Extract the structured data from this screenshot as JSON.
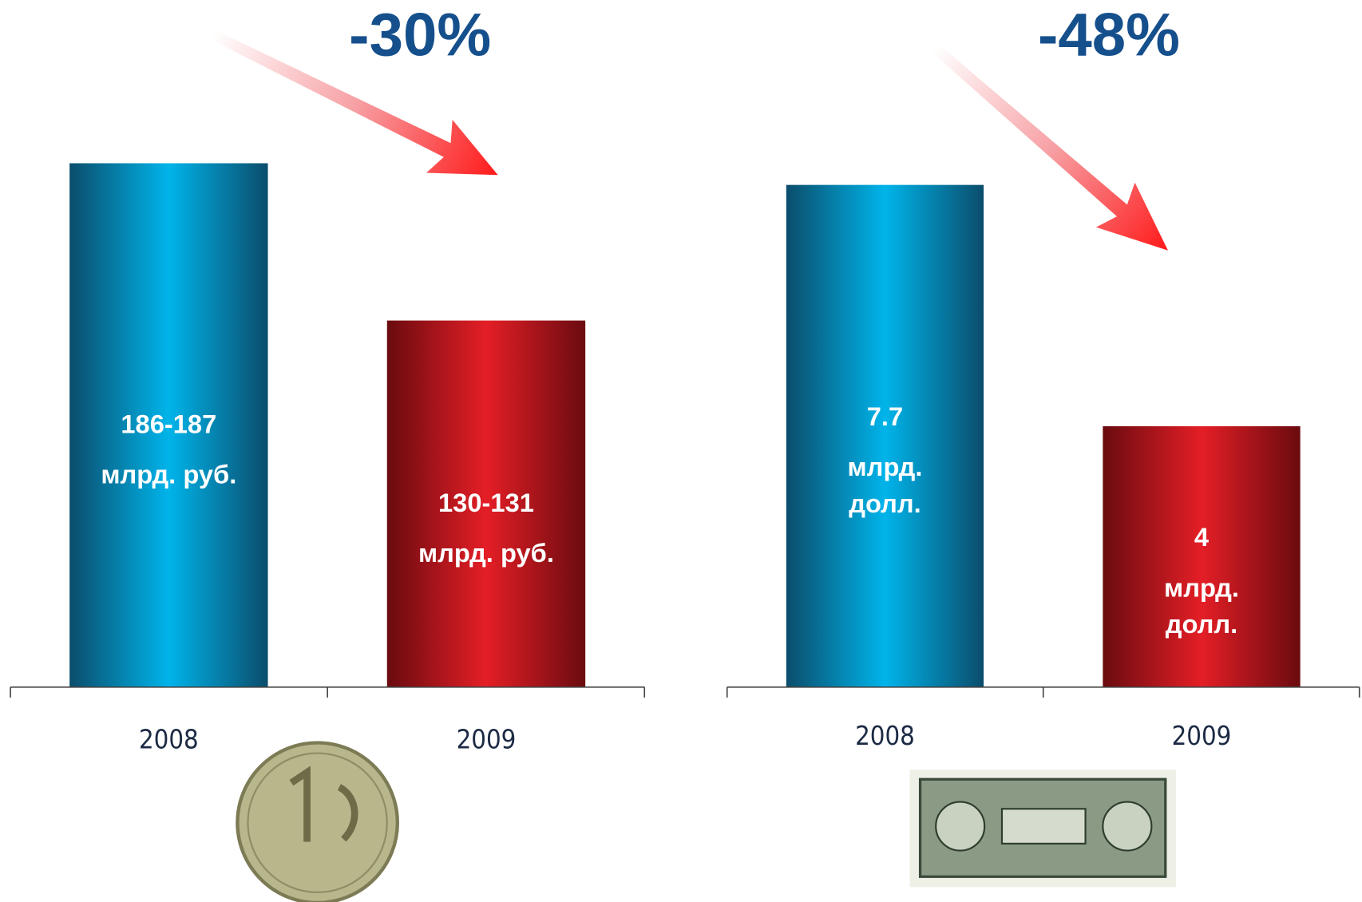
{
  "chart_data": [
    {
      "type": "bar",
      "annotation": "-30%",
      "categories": [
        "2008",
        "2009"
      ],
      "values": [
        186.5,
        130.5
      ],
      "value_labels": [
        "186-187",
        "130-131"
      ],
      "unit_lines": [
        "млрд. руб."
      ],
      "colors": [
        "#00b4ea",
        "#e41e26"
      ],
      "ylim": [
        0,
        200
      ]
    },
    {
      "type": "bar",
      "annotation": "-48%",
      "categories": [
        "2008",
        "2009"
      ],
      "values": [
        7.7,
        4.0
      ],
      "unit_lines": [
        "млрд.",
        "долл."
      ],
      "colors": [
        "#00b4ea",
        "#e41e26"
      ],
      "ylim": [
        0,
        8
      ]
    }
  ]
}
